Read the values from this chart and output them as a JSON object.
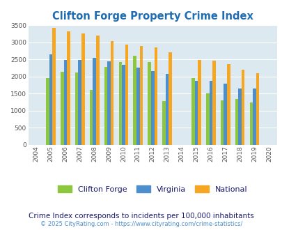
{
  "title": "Clifton Forge Property Crime Index",
  "years": [
    2004,
    2005,
    2006,
    2007,
    2008,
    2009,
    2010,
    2011,
    2012,
    2013,
    2014,
    2015,
    2016,
    2017,
    2018,
    2019,
    2020
  ],
  "clifton_forge": [
    0,
    1950,
    2130,
    2120,
    1600,
    2280,
    2420,
    2600,
    2430,
    1290,
    0,
    1950,
    1500,
    1300,
    1340,
    1240,
    0
  ],
  "virginia": [
    0,
    2650,
    2490,
    2490,
    2540,
    2450,
    2340,
    2260,
    2150,
    2080,
    0,
    1870,
    1870,
    1790,
    1650,
    1640,
    0
  ],
  "national": [
    0,
    3420,
    3330,
    3260,
    3200,
    3040,
    2940,
    2900,
    2860,
    2720,
    0,
    2490,
    2460,
    2360,
    2210,
    2100,
    0
  ],
  "colors": {
    "clifton_forge": "#8dc63f",
    "virginia": "#4d8fcc",
    "national": "#f5a623"
  },
  "ylim": [
    0,
    3500
  ],
  "yticks": [
    0,
    500,
    1000,
    1500,
    2000,
    2500,
    3000,
    3500
  ],
  "background_color": "#dce9f0",
  "grid_color": "#ffffff",
  "title_color": "#1f6eb5",
  "subtitle": "Crime Index corresponds to incidents per 100,000 inhabitants",
  "footer": "© 2025 CityRating.com - https://www.cityrating.com/crime-statistics/",
  "footer_color": "#4d8fcc",
  "legend_labels": [
    "Clifton Forge",
    "Virginia",
    "National"
  ],
  "legend_text_color": "#1a1a6e",
  "subtitle_color": "#1a1a6e",
  "bar_width": 0.22
}
